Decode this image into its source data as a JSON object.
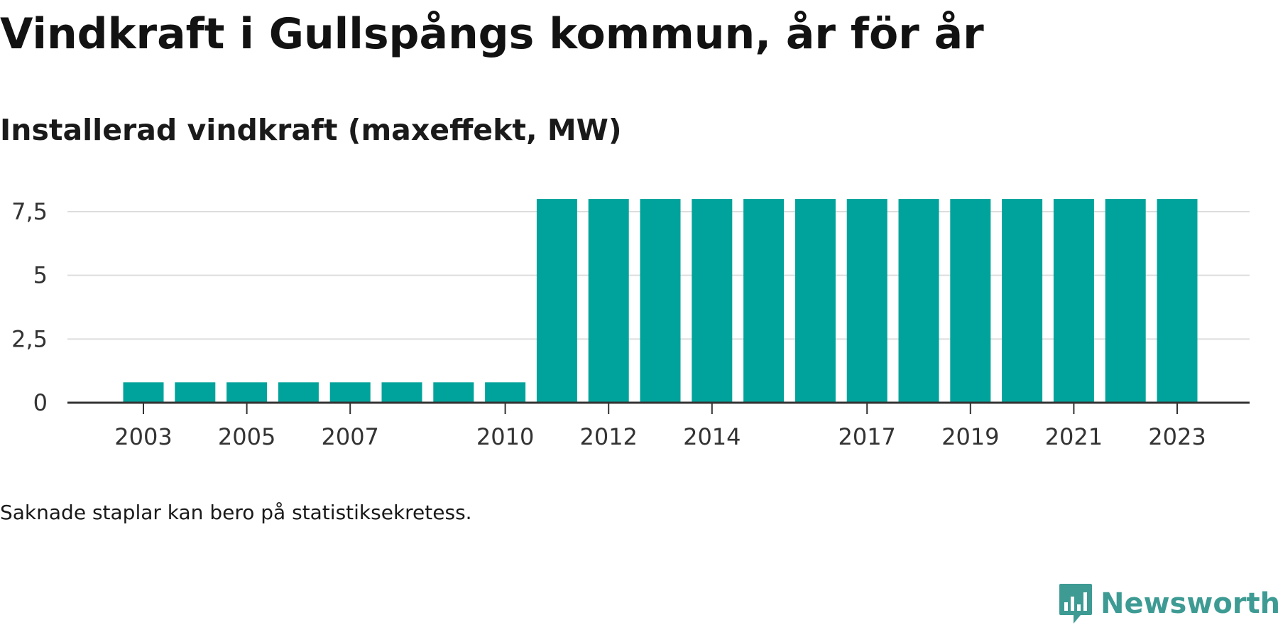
{
  "title": "Vindkraft i Gullspångs kommun, år för år",
  "subtitle": "Installerad vindkraft (maxeffekt, MW)",
  "note": "Saknade staplar kan bero på statistiksekretess.",
  "brand": {
    "name": "Newsworthy",
    "icon": "newsworthy-logo-icon"
  },
  "colors": {
    "bar": "#00a39b",
    "grid": "#dddddd",
    "axis": "#333333",
    "brand": "#3d9b94"
  },
  "chart_data": {
    "type": "bar",
    "categories": [
      "2003",
      "2004",
      "2005",
      "2006",
      "2007",
      "2008",
      "2009",
      "2010",
      "2011",
      "2012",
      "2013",
      "2014",
      "2015",
      "2016",
      "2017",
      "2018",
      "2019",
      "2020",
      "2021",
      "2022",
      "2023"
    ],
    "values": [
      0.8,
      0.8,
      0.8,
      0.8,
      0.8,
      0.8,
      0.8,
      0.8,
      8,
      8,
      8,
      8,
      8,
      8,
      8,
      8,
      8,
      8,
      8,
      8,
      8
    ],
    "x_tick_labels": [
      "2003",
      "2005",
      "2007",
      "2010",
      "2012",
      "2014",
      "2017",
      "2019",
      "2021",
      "2023"
    ],
    "y_ticks": [
      {
        "value": 0,
        "label": "0"
      },
      {
        "value": 2.5,
        "label": "2,5"
      },
      {
        "value": 5,
        "label": "5"
      },
      {
        "value": 7.5,
        "label": "7,5"
      }
    ],
    "ylim": [
      0,
      8
    ],
    "grid": true,
    "legend": "none"
  }
}
